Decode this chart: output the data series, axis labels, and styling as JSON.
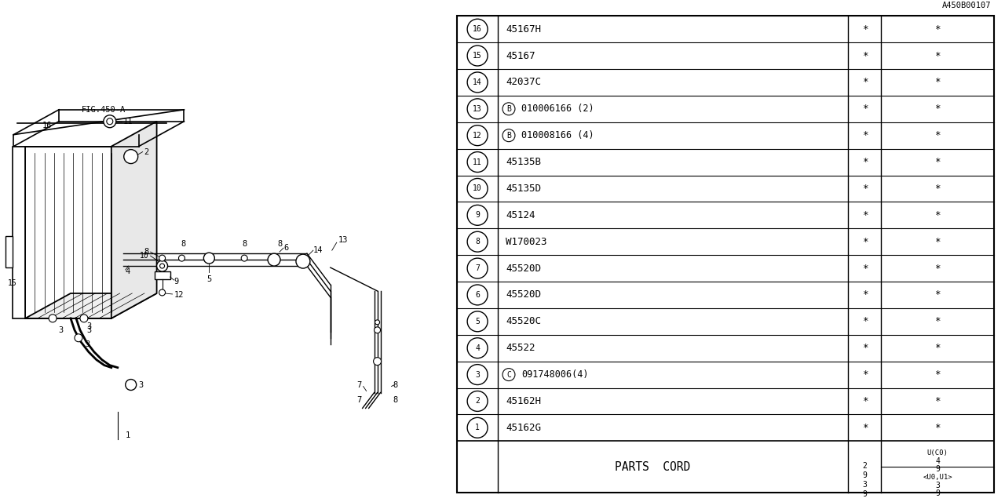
{
  "bg_color": "#ffffff",
  "fig_label": "A450B00107",
  "fig_name": "FIG.450-A",
  "table_title": "PARTS  CORD",
  "rows": [
    {
      "num": "1",
      "code": "45162G",
      "special": false,
      "prefix": "",
      "c1": "*",
      "c2": "*"
    },
    {
      "num": "2",
      "code": "45162H",
      "special": false,
      "prefix": "",
      "c1": "*",
      "c2": "*"
    },
    {
      "num": "3",
      "code": "091748006(4)",
      "special": true,
      "prefix": "C",
      "c1": "*",
      "c2": "*"
    },
    {
      "num": "4",
      "code": "45522",
      "special": false,
      "prefix": "",
      "c1": "*",
      "c2": "*"
    },
    {
      "num": "5",
      "code": "45520C",
      "special": false,
      "prefix": "",
      "c1": "*",
      "c2": "*"
    },
    {
      "num": "6",
      "code": "45520D",
      "special": false,
      "prefix": "",
      "c1": "*",
      "c2": "*"
    },
    {
      "num": "7",
      "code": "45520D",
      "special": false,
      "prefix": "",
      "c1": "*",
      "c2": "*"
    },
    {
      "num": "8",
      "code": "W170023",
      "special": false,
      "prefix": "",
      "c1": "*",
      "c2": "*"
    },
    {
      "num": "9",
      "code": "45124",
      "special": false,
      "prefix": "",
      "c1": "*",
      "c2": "*"
    },
    {
      "num": "10",
      "code": "45135D",
      "special": false,
      "prefix": "",
      "c1": "*",
      "c2": "*"
    },
    {
      "num": "11",
      "code": "45135B",
      "special": false,
      "prefix": "",
      "c1": "*",
      "c2": "*"
    },
    {
      "num": "12",
      "code": "010008166 (4)",
      "special": true,
      "prefix": "B",
      "c1": "*",
      "c2": "*"
    },
    {
      "num": "13",
      "code": "010006166 (2)",
      "special": true,
      "prefix": "B",
      "c1": "*",
      "c2": "*"
    },
    {
      "num": "14",
      "code": "42037C",
      "special": false,
      "prefix": "",
      "c1": "*",
      "c2": "*"
    },
    {
      "num": "15",
      "code": "45167",
      "special": false,
      "prefix": "",
      "c1": "*",
      "c2": "*"
    },
    {
      "num": "16",
      "code": "45167H",
      "special": false,
      "prefix": "",
      "c1": "*",
      "c2": "*"
    }
  ]
}
